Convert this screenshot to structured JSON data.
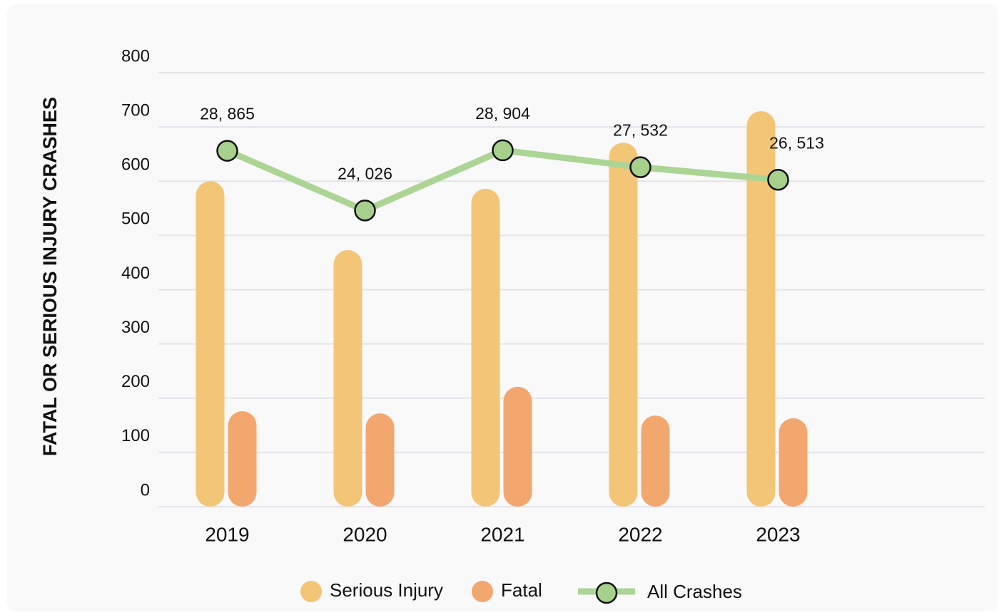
{
  "chart_data": {
    "type": "bar",
    "y_label": "FATAL OR SERIOUS INJURY CRASHES",
    "categories": [
      "2019",
      "2020",
      "2021",
      "2022",
      "2023"
    ],
    "series": [
      {
        "name": "Serious Injury",
        "color": "#f3c577",
        "values": [
          600,
          473,
          586,
          671,
          729
        ]
      },
      {
        "name": "Fatal",
        "color": "#f2a76f",
        "values": [
          176,
          172,
          221,
          168,
          163
        ]
      },
      {
        "name": "All Crashes",
        "type": "line",
        "axis": "y2",
        "color": "#acd595",
        "marker_color": "#a8d08d",
        "values": [
          28865,
          24026,
          28904,
          27532,
          26513
        ],
        "value_labels": [
          "28, 865",
          "24, 026",
          "28, 904",
          "27, 532",
          "26, 513"
        ]
      }
    ],
    "ylim": [
      0,
      800
    ],
    "yticks": [
      0,
      100,
      200,
      300,
      400,
      500,
      600,
      700,
      800
    ],
    "y2lim": [
      0,
      35200
    ],
    "grid": true,
    "legend": "bottom"
  }
}
